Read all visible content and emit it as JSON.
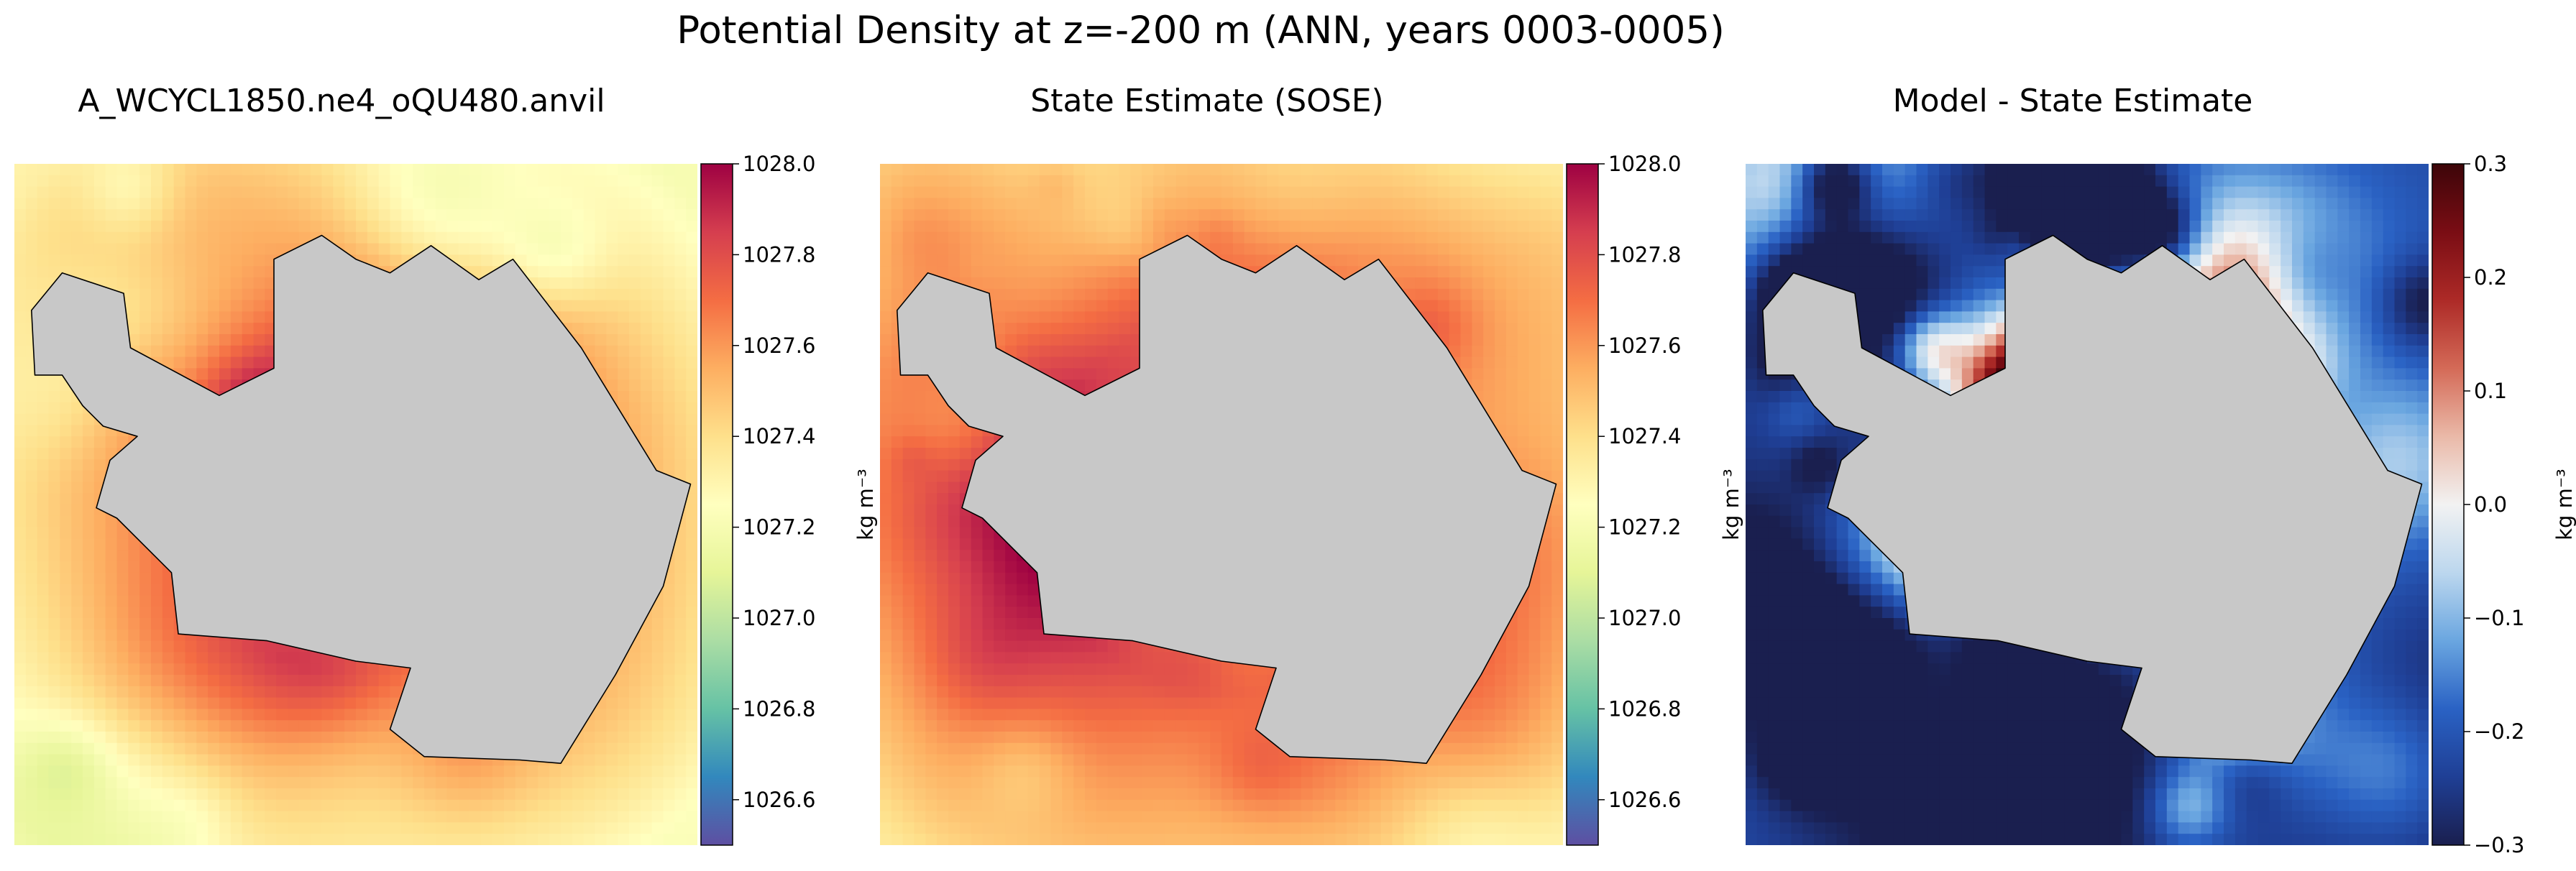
{
  "suptitle": "Potential Density at z=-200 m (ANN, years 0003-0005)",
  "chart_data": [
    {
      "type": "heatmap",
      "title": "A_WCYCL1850.ne4_oQU480.anvil",
      "field": "model",
      "colormap": "Spectral_r",
      "colormap_colors": [
        "#5e4fa2",
        "#3288bd",
        "#66c2a5",
        "#abdda4",
        "#e6f598",
        "#ffffbf",
        "#fee08b",
        "#fdae61",
        "#f46d43",
        "#d53e4f",
        "#9e0142"
      ],
      "vmin": 1026.5,
      "vmax": 1028.0,
      "colorbar_ticks": [
        "1026.6",
        "1026.8",
        "1027.0",
        "1027.2",
        "1027.4",
        "1027.6",
        "1027.8",
        "1028.0"
      ],
      "colorbar_tick_values": [
        1026.6,
        1026.8,
        1027.0,
        1027.2,
        1027.4,
        1027.6,
        1027.8,
        1028.0
      ],
      "colorbar_label": "kg m⁻³",
      "land_color": "#c8c8c8"
    },
    {
      "type": "heatmap",
      "title": "State Estimate (SOSE)",
      "field": "observations",
      "colormap": "Spectral_r",
      "colormap_colors": [
        "#5e4fa2",
        "#3288bd",
        "#66c2a5",
        "#abdda4",
        "#e6f598",
        "#ffffbf",
        "#fee08b",
        "#fdae61",
        "#f46d43",
        "#d53e4f",
        "#9e0142"
      ],
      "vmin": 1026.5,
      "vmax": 1028.0,
      "colorbar_ticks": [
        "1026.6",
        "1026.8",
        "1027.0",
        "1027.2",
        "1027.4",
        "1027.6",
        "1027.8",
        "1028.0"
      ],
      "colorbar_tick_values": [
        1026.6,
        1026.8,
        1027.0,
        1027.2,
        1027.4,
        1027.6,
        1027.8,
        1028.0
      ],
      "colorbar_label": "kg m⁻³",
      "land_color": "#c8c8c8"
    },
    {
      "type": "heatmap",
      "title": "Model - State Estimate",
      "field": "difference",
      "colormap": "RdBu_r",
      "colormap_colors": [
        "#1a1f4f",
        "#1f3f95",
        "#2a62c4",
        "#6aa6e0",
        "#bcd7ee",
        "#f2f2f2",
        "#eab9a8",
        "#d46a57",
        "#ad2a27",
        "#7a0d14",
        "#3d0509"
      ],
      "vmin": -0.3,
      "vmax": 0.3,
      "colorbar_ticks": [
        "−0.3",
        "−0.2",
        "−0.1",
        "0.0",
        "0.1",
        "0.2",
        "0.3"
      ],
      "colorbar_tick_values": [
        -0.3,
        -0.2,
        -0.1,
        0.0,
        0.1,
        0.2,
        0.3
      ],
      "colorbar_label": "kg m⁻³",
      "land_color": "#c8c8c8"
    }
  ]
}
